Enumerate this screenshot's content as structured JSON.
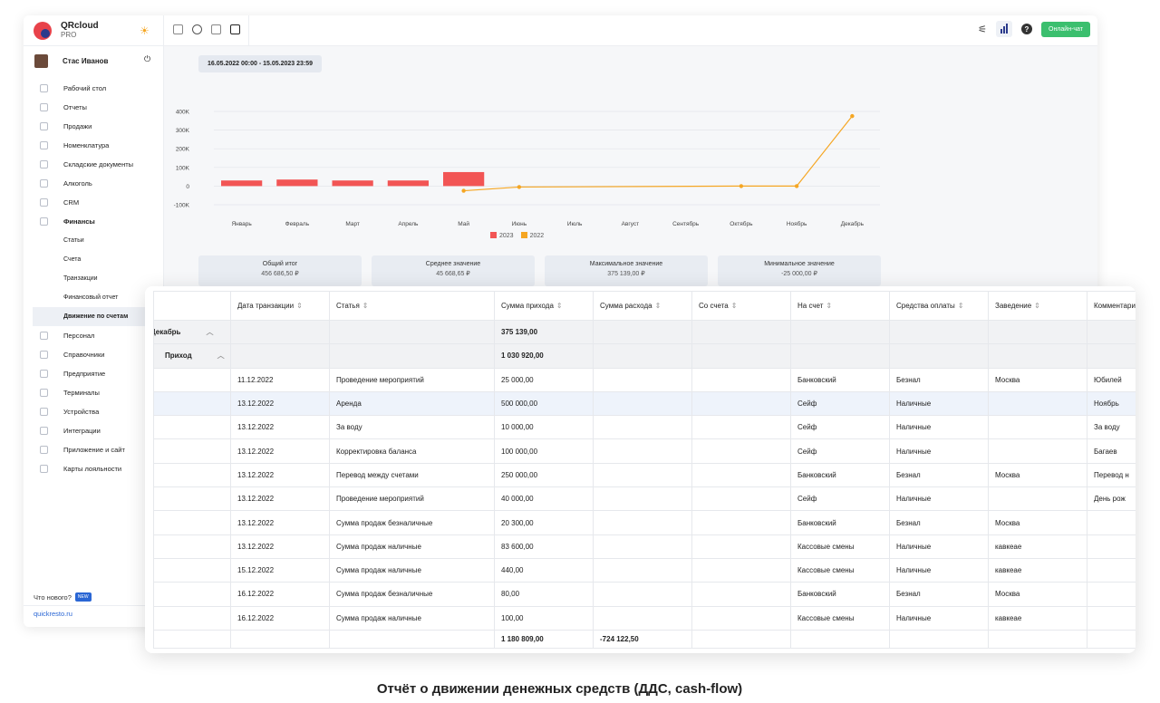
{
  "brand": {
    "name": "QRcloud",
    "plan": "PRO"
  },
  "user": {
    "name": "Стас Иванов"
  },
  "menu": [
    {
      "label": "Рабочий стол",
      "icon": "dashboard-icon"
    },
    {
      "label": "Отчеты",
      "icon": "reports-icon"
    },
    {
      "label": "Продажи",
      "icon": "sales-icon"
    },
    {
      "label": "Номенклатура",
      "icon": "catalog-icon"
    },
    {
      "label": "Складские документы",
      "icon": "warehouse-icon"
    },
    {
      "label": "Алкоголь",
      "icon": "glass-icon"
    },
    {
      "label": "CRM",
      "icon": "crm-icon"
    },
    {
      "label": "Финансы",
      "icon": "finance-icon"
    }
  ],
  "finance_sub": [
    "Статьи",
    "Счета",
    "Транзакции",
    "Финансовый отчет",
    "Движение по счетам"
  ],
  "menu2": [
    {
      "label": "Персонал",
      "icon": "staff-icon"
    },
    {
      "label": "Справочники",
      "icon": "book-icon"
    },
    {
      "label": "Предприятие",
      "icon": "building-icon"
    },
    {
      "label": "Терминалы",
      "icon": "terminal-icon"
    },
    {
      "label": "Устройства",
      "icon": "printer-icon"
    },
    {
      "label": "Интеграции",
      "icon": "link-icon"
    },
    {
      "label": "Приложение и сайт",
      "icon": "app-icon"
    },
    {
      "label": "Карты лояльности",
      "icon": "card-icon"
    }
  ],
  "news": {
    "label": "Что нового?",
    "badge": "NEW"
  },
  "site": "quickresto.ru",
  "topbar": {
    "chat": "Онлайн-чат",
    "help": "?"
  },
  "date_range": "16.05.2022 00:00 - 15.05.2023 23:59",
  "chart_data": {
    "type": "bar",
    "categories": [
      "Январь",
      "Февраль",
      "Март",
      "Апрель",
      "Май",
      "Июнь",
      "Июль",
      "Август",
      "Сентябрь",
      "Октябрь",
      "Ноябрь",
      "Декабрь"
    ],
    "yticks": [
      "400K",
      "300K",
      "200K",
      "100K",
      "0",
      "-100K"
    ],
    "ylim": [
      -100000,
      400000
    ],
    "series": [
      {
        "name": "2023",
        "type": "bar",
        "color": "#f25555",
        "values": [
          30000,
          35000,
          30000,
          30000,
          75000,
          null,
          null,
          null,
          null,
          null,
          null,
          null
        ]
      },
      {
        "name": "2022",
        "type": "line",
        "color": "#f5a623",
        "values": [
          null,
          null,
          null,
          null,
          -25000,
          -5000,
          null,
          null,
          null,
          0,
          0,
          375139
        ]
      }
    ]
  },
  "stats": [
    {
      "label": "Общий итог",
      "value": "456 686,50 ₽"
    },
    {
      "label": "Среднее значение",
      "value": "45 668,65 ₽"
    },
    {
      "label": "Максимальное значение",
      "value": "375 139,00 ₽"
    },
    {
      "label": "Минимальное значение",
      "value": "-25 000,00 ₽"
    }
  ],
  "table": {
    "headers": [
      "",
      "Дата транзакции",
      "Статья",
      "Сумма прихода",
      "Сумма расхода",
      "Со счета",
      "На счет",
      "Средства оплаты",
      "Заведение",
      "Комментарий"
    ],
    "group_month": {
      "label": "Декабрь",
      "income": "375 139,00"
    },
    "group_type": {
      "label": "Приход",
      "income": "1 030 920,00"
    },
    "rows": [
      [
        "11.12.2022",
        "Проведение мероприятий",
        "25 000,00",
        "",
        "",
        "Банковский",
        "Безнал",
        "Москва",
        "Юбилей"
      ],
      [
        "13.12.2022",
        "Аренда",
        "500 000,00",
        "",
        "",
        "Сейф",
        "Наличные",
        "",
        "Ноябрь"
      ],
      [
        "13.12.2022",
        "За воду",
        "10 000,00",
        "",
        "",
        "Сейф",
        "Наличные",
        "",
        "За воду"
      ],
      [
        "13.12.2022",
        "Корректировка баланса",
        "100 000,00",
        "",
        "",
        "Сейф",
        "Наличные",
        "",
        "Багаев"
      ],
      [
        "13.12.2022",
        "Перевод между счетами",
        "250 000,00",
        "",
        "",
        "Банковский",
        "Безнал",
        "Москва",
        "Перевод н"
      ],
      [
        "13.12.2022",
        "Проведение мероприятий",
        "40 000,00",
        "",
        "",
        "Сейф",
        "Наличные",
        "",
        "День рож"
      ],
      [
        "13.12.2022",
        "Сумма продаж безналичные",
        "20 300,00",
        "",
        "",
        "Банковский",
        "Безнал",
        "Москва",
        ""
      ],
      [
        "13.12.2022",
        "Сумма продаж наличные",
        "83 600,00",
        "",
        "",
        "Кассовые смены",
        "Наличные",
        "кавкеае",
        ""
      ],
      [
        "15.12.2022",
        "Сумма продаж наличные",
        "440,00",
        "",
        "",
        "Кассовые смены",
        "Наличные",
        "кавкеае",
        ""
      ],
      [
        "16.12.2022",
        "Сумма продаж безналичные",
        "80,00",
        "",
        "",
        "Банковский",
        "Безнал",
        "Москва",
        ""
      ],
      [
        "16.12.2022",
        "Сумма продаж наличные",
        "100,00",
        "",
        "",
        "Кассовые смены",
        "Наличные",
        "кавкеае",
        ""
      ]
    ],
    "totals": {
      "income": "1 180 809,00",
      "expense": "-724 122,50"
    }
  },
  "caption": "Отчёт о движении денежных средств (ДДС, cash-flow)"
}
